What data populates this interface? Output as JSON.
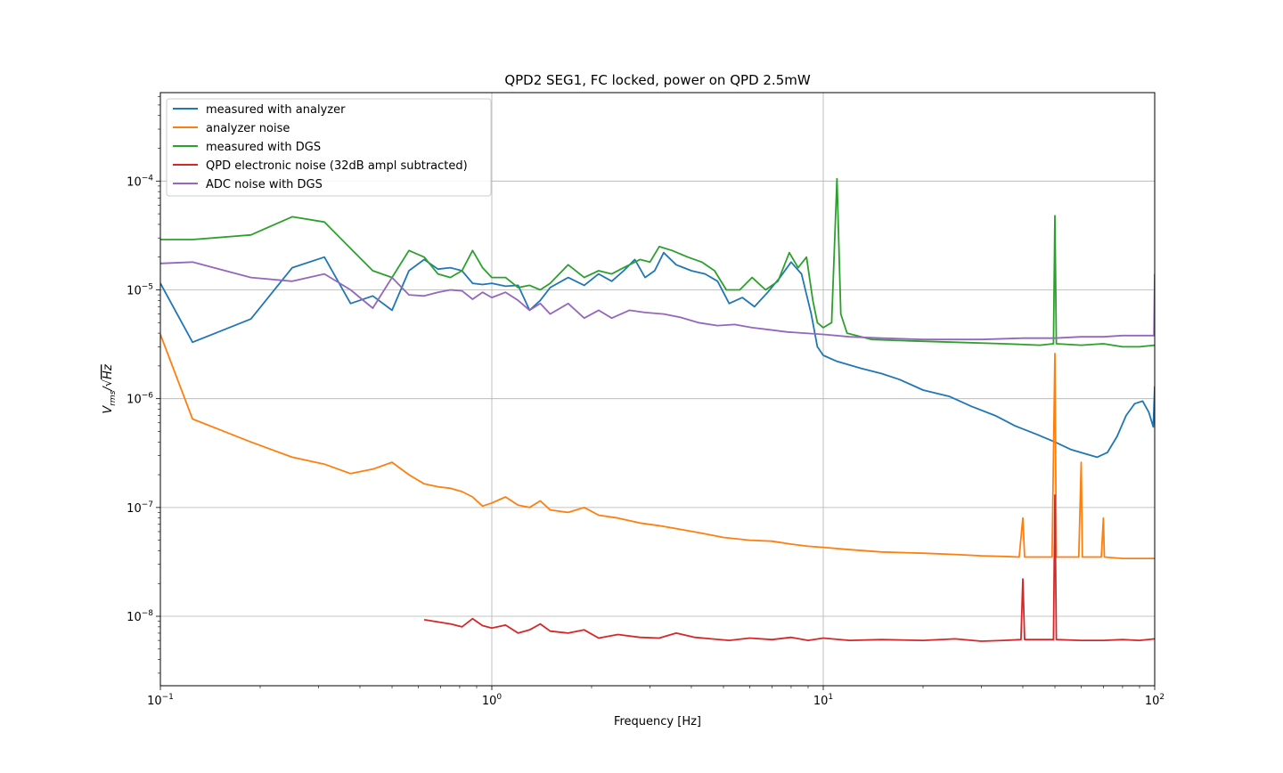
{
  "chart_data": {
    "type": "line",
    "title": "QPD2 SEG1, FC locked, power on QPD 2.5mW",
    "xlabel": "Frequency [Hz]",
    "ylabel": "V_rms/√Hz",
    "xscale": "log",
    "yscale": "log",
    "xlim": [
      0.1,
      100
    ],
    "ylim": [
      2.3e-09,
      0.00065
    ],
    "grid": true,
    "legend_position": "upper-left",
    "x_ticks": [
      {
        "value": 0.1,
        "base": "10",
        "exp": "−1"
      },
      {
        "value": 1,
        "base": "10",
        "exp": "0"
      },
      {
        "value": 10,
        "base": "10",
        "exp": "1"
      },
      {
        "value": 100,
        "base": "10",
        "exp": "2"
      }
    ],
    "y_ticks": [
      {
        "value": 1e-08,
        "base": "10",
        "exp": "−8"
      },
      {
        "value": 1e-07,
        "base": "10",
        "exp": "−7"
      },
      {
        "value": 1e-06,
        "base": "10",
        "exp": "−6"
      },
      {
        "value": 1e-05,
        "base": "10",
        "exp": "−5"
      },
      {
        "value": 0.0001,
        "base": "10",
        "exp": "−4"
      }
    ],
    "series": [
      {
        "name": "measured with analyzer",
        "color": "#1f77b4",
        "points": [
          [
            0.1,
            1.15e-05
          ],
          [
            0.125,
            3.3e-06
          ],
          [
            0.1875,
            5.4e-06
          ],
          [
            0.25,
            1.6e-05
          ],
          [
            0.3125,
            2e-05
          ],
          [
            0.375,
            7.5e-06
          ],
          [
            0.4375,
            8.8e-06
          ],
          [
            0.5,
            6.5e-06
          ],
          [
            0.5625,
            1.5e-05
          ],
          [
            0.625,
            1.9e-05
          ],
          [
            0.6875,
            1.55e-05
          ],
          [
            0.75,
            1.6e-05
          ],
          [
            0.8125,
            1.5e-05
          ],
          [
            0.875,
            1.15e-05
          ],
          [
            0.9375,
            1.12e-05
          ],
          [
            1.0,
            1.15e-05
          ],
          [
            1.1,
            1.08e-05
          ],
          [
            1.2,
            1.1e-05
          ],
          [
            1.3,
            6.5e-06
          ],
          [
            1.4,
            8e-06
          ],
          [
            1.5,
            1.05e-05
          ],
          [
            1.7,
            1.3e-05
          ],
          [
            1.9,
            1.1e-05
          ],
          [
            2.1,
            1.4e-05
          ],
          [
            2.3,
            1.2e-05
          ],
          [
            2.5,
            1.5e-05
          ],
          [
            2.7,
            1.9e-05
          ],
          [
            2.9,
            1.3e-05
          ],
          [
            3.1,
            1.5e-05
          ],
          [
            3.3,
            2.2e-05
          ],
          [
            3.6,
            1.7e-05
          ],
          [
            4.0,
            1.5e-05
          ],
          [
            4.4,
            1.4e-05
          ],
          [
            4.8,
            1.2e-05
          ],
          [
            5.2,
            7.5e-06
          ],
          [
            5.7,
            8.5e-06
          ],
          [
            6.2,
            7e-06
          ],
          [
            6.8,
            9.5e-06
          ],
          [
            7.4,
            1.3e-05
          ],
          [
            8.0,
            1.8e-05
          ],
          [
            8.6,
            1.4e-05
          ],
          [
            9.2,
            6e-06
          ],
          [
            9.6,
            3e-06
          ],
          [
            10.0,
            2.5e-06
          ],
          [
            11.0,
            2.2e-06
          ],
          [
            13.0,
            1.9e-06
          ],
          [
            15.0,
            1.7e-06
          ],
          [
            17.0,
            1.5e-06
          ],
          [
            20.0,
            1.2e-06
          ],
          [
            24.0,
            1.05e-06
          ],
          [
            28.0,
            8.5e-07
          ],
          [
            33.0,
            7e-07
          ],
          [
            38.0,
            5.6e-07
          ],
          [
            44.0,
            4.7e-07
          ],
          [
            50.0,
            4e-07
          ],
          [
            56.0,
            3.4e-07
          ],
          [
            62.0,
            3.1e-07
          ],
          [
            67.0,
            2.9e-07
          ],
          [
            72.0,
            3.2e-07
          ],
          [
            77.0,
            4.5e-07
          ],
          [
            82.0,
            7e-07
          ],
          [
            87.0,
            9e-07
          ],
          [
            92.0,
            9.5e-07
          ],
          [
            96.0,
            7.5e-07
          ],
          [
            99.0,
            5.5e-07
          ],
          [
            100.0,
            1.3e-06
          ]
        ]
      },
      {
        "name": "analyzer noise",
        "color": "#ff7f0e",
        "points": [
          [
            0.1,
            3.9e-06
          ],
          [
            0.125,
            6.5e-07
          ],
          [
            0.1875,
            4e-07
          ],
          [
            0.25,
            2.9e-07
          ],
          [
            0.3125,
            2.5e-07
          ],
          [
            0.375,
            2.05e-07
          ],
          [
            0.4375,
            2.25e-07
          ],
          [
            0.5,
            2.6e-07
          ],
          [
            0.5625,
            2e-07
          ],
          [
            0.625,
            1.65e-07
          ],
          [
            0.6875,
            1.55e-07
          ],
          [
            0.75,
            1.5e-07
          ],
          [
            0.8125,
            1.4e-07
          ],
          [
            0.875,
            1.25e-07
          ],
          [
            0.9375,
            1.03e-07
          ],
          [
            1.0,
            1.1e-07
          ],
          [
            1.1,
            1.25e-07
          ],
          [
            1.2,
            1.05e-07
          ],
          [
            1.3,
            1e-07
          ],
          [
            1.4,
            1.15e-07
          ],
          [
            1.5,
            9.5e-08
          ],
          [
            1.7,
            9e-08
          ],
          [
            1.9,
            1e-07
          ],
          [
            2.1,
            8.5e-08
          ],
          [
            2.4,
            8e-08
          ],
          [
            2.8,
            7.2e-08
          ],
          [
            3.2,
            6.8e-08
          ],
          [
            3.7,
            6.3e-08
          ],
          [
            4.3,
            5.8e-08
          ],
          [
            5.0,
            5.3e-08
          ],
          [
            6.0,
            5e-08
          ],
          [
            7.0,
            4.9e-08
          ],
          [
            8.0,
            4.6e-08
          ],
          [
            9.0,
            4.4e-08
          ],
          [
            10.0,
            4.3e-08
          ],
          [
            12.0,
            4.1e-08
          ],
          [
            15.0,
            3.9e-08
          ],
          [
            20.0,
            3.8e-08
          ],
          [
            25.0,
            3.7e-08
          ],
          [
            30.0,
            3.6e-08
          ],
          [
            35.0,
            3.55e-08
          ],
          [
            39.0,
            3.5e-08
          ],
          [
            40.0,
            8e-08
          ],
          [
            40.5,
            3.5e-08
          ],
          [
            49.0,
            3.5e-08
          ],
          [
            50.0,
            2.6e-06
          ],
          [
            50.5,
            3.5e-08
          ],
          [
            59.0,
            3.5e-08
          ],
          [
            60.0,
            2.6e-07
          ],
          [
            60.5,
            3.5e-08
          ],
          [
            69.0,
            3.5e-08
          ],
          [
            70.0,
            8e-08
          ],
          [
            70.5,
            3.5e-08
          ],
          [
            80.0,
            3.4e-08
          ],
          [
            90.0,
            3.4e-08
          ],
          [
            100.0,
            3.4e-08
          ]
        ]
      },
      {
        "name": "measured with DGS",
        "color": "#2ca02c",
        "points": [
          [
            0.1,
            2.9e-05
          ],
          [
            0.125,
            2.9e-05
          ],
          [
            0.1875,
            3.2e-05
          ],
          [
            0.25,
            4.7e-05
          ],
          [
            0.3125,
            4.2e-05
          ],
          [
            0.375,
            2.4e-05
          ],
          [
            0.4375,
            1.5e-05
          ],
          [
            0.5,
            1.3e-05
          ],
          [
            0.5625,
            2.3e-05
          ],
          [
            0.625,
            2e-05
          ],
          [
            0.6875,
            1.4e-05
          ],
          [
            0.75,
            1.3e-05
          ],
          [
            0.8125,
            1.5e-05
          ],
          [
            0.875,
            2.3e-05
          ],
          [
            0.9375,
            1.6e-05
          ],
          [
            1.0,
            1.3e-05
          ],
          [
            1.1,
            1.3e-05
          ],
          [
            1.2,
            1.05e-05
          ],
          [
            1.3,
            1.1e-05
          ],
          [
            1.4,
            1e-05
          ],
          [
            1.5,
            1.15e-05
          ],
          [
            1.7,
            1.7e-05
          ],
          [
            1.9,
            1.3e-05
          ],
          [
            2.1,
            1.5e-05
          ],
          [
            2.3,
            1.4e-05
          ],
          [
            2.5,
            1.6e-05
          ],
          [
            2.8,
            1.9e-05
          ],
          [
            3.0,
            1.8e-05
          ],
          [
            3.2,
            2.5e-05
          ],
          [
            3.5,
            2.3e-05
          ],
          [
            3.9,
            2e-05
          ],
          [
            4.3,
            1.8e-05
          ],
          [
            4.7,
            1.5e-05
          ],
          [
            5.1,
            1e-05
          ],
          [
            5.6,
            1e-05
          ],
          [
            6.1,
            1.3e-05
          ],
          [
            6.7,
            1e-05
          ],
          [
            7.3,
            1.2e-05
          ],
          [
            7.9,
            2.2e-05
          ],
          [
            8.4,
            1.6e-05
          ],
          [
            8.9,
            2e-05
          ],
          [
            9.3,
            8e-06
          ],
          [
            9.6,
            5e-06
          ],
          [
            10.0,
            4.5e-06
          ],
          [
            10.6,
            5e-06
          ],
          [
            11.0,
            0.000105
          ],
          [
            11.3,
            6e-06
          ],
          [
            11.8,
            4e-06
          ],
          [
            14.0,
            3.5e-06
          ],
          [
            18.0,
            3.4e-06
          ],
          [
            25.0,
            3.3e-06
          ],
          [
            35.0,
            3.2e-06
          ],
          [
            45.0,
            3.1e-06
          ],
          [
            49.5,
            3.2e-06
          ],
          [
            50.0,
            4.8e-05
          ],
          [
            50.5,
            3.2e-06
          ],
          [
            60.0,
            3.1e-06
          ],
          [
            70.0,
            3.2e-06
          ],
          [
            80.0,
            3e-06
          ],
          [
            90.0,
            3e-06
          ],
          [
            100.0,
            3.1e-06
          ]
        ]
      },
      {
        "name": "QPD electronic noise (32dB ampl subtracted)",
        "color": "#d62728",
        "points": [
          [
            0.625,
            9.3e-09
          ],
          [
            0.75,
            8.5e-09
          ],
          [
            0.8125,
            8e-09
          ],
          [
            0.875,
            9.5e-09
          ],
          [
            0.9375,
            8.2e-09
          ],
          [
            1.0,
            7.8e-09
          ],
          [
            1.1,
            8.3e-09
          ],
          [
            1.2,
            7e-09
          ],
          [
            1.3,
            7.5e-09
          ],
          [
            1.4,
            8.5e-09
          ],
          [
            1.5,
            7.3e-09
          ],
          [
            1.7,
            7e-09
          ],
          [
            1.9,
            7.5e-09
          ],
          [
            2.1,
            6.3e-09
          ],
          [
            2.4,
            6.8e-09
          ],
          [
            2.8,
            6.4e-09
          ],
          [
            3.2,
            6.3e-09
          ],
          [
            3.6,
            7e-09
          ],
          [
            4.1,
            6.4e-09
          ],
          [
            4.6,
            6.2e-09
          ],
          [
            5.2,
            6e-09
          ],
          [
            6.0,
            6.3e-09
          ],
          [
            7.0,
            6.1e-09
          ],
          [
            8.0,
            6.4e-09
          ],
          [
            9.0,
            6e-09
          ],
          [
            10.0,
            6.3e-09
          ],
          [
            12.0,
            6e-09
          ],
          [
            15.0,
            6.1e-09
          ],
          [
            20.0,
            6e-09
          ],
          [
            25.0,
            6.2e-09
          ],
          [
            30.0,
            5.9e-09
          ],
          [
            35.0,
            6e-09
          ],
          [
            39.5,
            6.1e-09
          ],
          [
            40.0,
            2.2e-08
          ],
          [
            40.5,
            6.1e-09
          ],
          [
            49.5,
            6.1e-09
          ],
          [
            50.0,
            1.3e-07
          ],
          [
            50.5,
            6.1e-09
          ],
          [
            60.0,
            6e-09
          ],
          [
            70.0,
            6e-09
          ],
          [
            80.0,
            6.1e-09
          ],
          [
            90.0,
            6e-09
          ],
          [
            100.0,
            6.2e-09
          ]
        ]
      },
      {
        "name": "ADC noise with DGS",
        "color": "#9467bd",
        "points": [
          [
            0.1,
            1.75e-05
          ],
          [
            0.125,
            1.8e-05
          ],
          [
            0.1875,
            1.3e-05
          ],
          [
            0.25,
            1.2e-05
          ],
          [
            0.3125,
            1.4e-05
          ],
          [
            0.375,
            1e-05
          ],
          [
            0.4375,
            6.8e-06
          ],
          [
            0.5,
            1.3e-05
          ],
          [
            0.5625,
            9e-06
          ],
          [
            0.625,
            8.8e-06
          ],
          [
            0.6875,
            9.5e-06
          ],
          [
            0.75,
            1e-05
          ],
          [
            0.8125,
            9.8e-06
          ],
          [
            0.875,
            8.2e-06
          ],
          [
            0.9375,
            9.5e-06
          ],
          [
            1.0,
            8.5e-06
          ],
          [
            1.1,
            9.5e-06
          ],
          [
            1.2,
            8e-06
          ],
          [
            1.3,
            6.5e-06
          ],
          [
            1.4,
            7.5e-06
          ],
          [
            1.5,
            6e-06
          ],
          [
            1.7,
            7.5e-06
          ],
          [
            1.9,
            5.5e-06
          ],
          [
            2.1,
            6.5e-06
          ],
          [
            2.3,
            5.5e-06
          ],
          [
            2.6,
            6.5e-06
          ],
          [
            2.9,
            6.2e-06
          ],
          [
            3.3,
            6e-06
          ],
          [
            3.7,
            5.6e-06
          ],
          [
            4.2,
            5e-06
          ],
          [
            4.8,
            4.7e-06
          ],
          [
            5.4,
            4.8e-06
          ],
          [
            6.1,
            4.5e-06
          ],
          [
            6.9,
            4.3e-06
          ],
          [
            7.8,
            4.1e-06
          ],
          [
            8.8,
            4e-06
          ],
          [
            10.0,
            3.9e-06
          ],
          [
            12.0,
            3.7e-06
          ],
          [
            15.0,
            3.6e-06
          ],
          [
            20.0,
            3.5e-06
          ],
          [
            25.0,
            3.5e-06
          ],
          [
            30.0,
            3.5e-06
          ],
          [
            40.0,
            3.6e-06
          ],
          [
            50.0,
            3.6e-06
          ],
          [
            60.0,
            3.7e-06
          ],
          [
            70.0,
            3.7e-06
          ],
          [
            80.0,
            3.8e-06
          ],
          [
            90.0,
            3.8e-06
          ],
          [
            99.5,
            3.8e-06
          ],
          [
            100.0,
            1.4e-05
          ]
        ]
      }
    ]
  }
}
